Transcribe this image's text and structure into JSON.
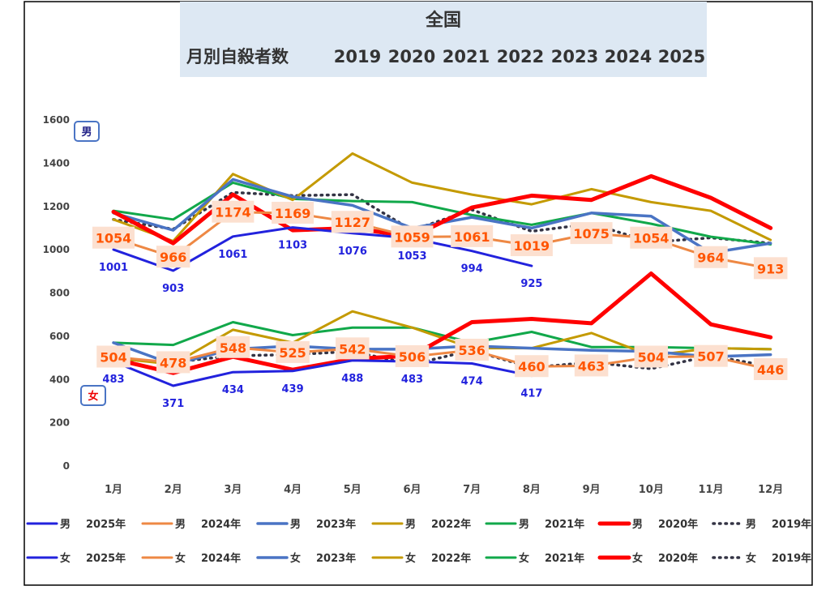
{
  "chart_data": {
    "type": "line",
    "title": "全国",
    "subtitle": "月別自殺者数",
    "years_header": [
      "2019",
      "2020",
      "2021",
      "2022",
      "2023",
      "2024",
      "2025"
    ],
    "categories": [
      "1月",
      "2月",
      "3月",
      "4月",
      "5月",
      "6月",
      "7月",
      "8月",
      "9月",
      "10月",
      "11月",
      "12月"
    ],
    "ylim": [
      0,
      1600
    ],
    "yticks": [
      "0",
      "200",
      "400",
      "600",
      "800",
      "1000",
      "1200",
      "1400",
      "1600"
    ],
    "grid": false,
    "box_labels": {
      "male": "男",
      "female": "女"
    },
    "series": [
      {
        "name": "男",
        "year_label": "2025年",
        "color": "#2222dd",
        "dashed": false,
        "width": 3,
        "group": "male",
        "values": [
          1001,
          903,
          1061,
          1103,
          1076,
          1053,
          994,
          925,
          null,
          null,
          null,
          null
        ]
      },
      {
        "name": "男",
        "year_label": "2024年",
        "color": "#ee8844",
        "dashed": false,
        "width": 3,
        "group": "male",
        "values": [
          1054,
          966,
          1174,
          1169,
          1127,
          1059,
          1061,
          1019,
          1075,
          1054,
          964,
          913
        ]
      },
      {
        "name": "男",
        "year_label": "2023年",
        "color": "#4a74c4",
        "dashed": false,
        "width": 3.5,
        "group": "male",
        "values": [
          1170,
          1090,
          1325,
          1245,
          1205,
          1100,
          1150,
          1100,
          1170,
          1155,
          985,
          1030
        ]
      },
      {
        "name": "男",
        "year_label": "2022年",
        "color": "#c49a00",
        "dashed": false,
        "width": 3,
        "group": "male",
        "values": [
          1140,
          1040,
          1350,
          1230,
          1445,
          1310,
          1255,
          1210,
          1280,
          1220,
          1180,
          1045
        ]
      },
      {
        "name": "男",
        "year_label": "2021年",
        "color": "#11a84a",
        "dashed": false,
        "width": 3,
        "group": "male",
        "values": [
          1180,
          1140,
          1310,
          1235,
          1225,
          1220,
          1160,
          1115,
          1170,
          1120,
          1060,
          1025
        ]
      },
      {
        "name": "男",
        "year_label": "2020年",
        "color": "#ff0000",
        "dashed": false,
        "width": 5,
        "group": "male",
        "values": [
          1175,
          1030,
          1255,
          1090,
          1100,
          1060,
          1195,
          1250,
          1230,
          1340,
          1240,
          1100
        ]
      },
      {
        "name": "男",
        "year_label": "2019年",
        "color": "#333344",
        "dashed": true,
        "width": 3.5,
        "group": "male",
        "values": [
          1140,
          1095,
          1265,
          1250,
          1255,
          1090,
          1185,
          1085,
          1120,
          1035,
          1055,
          1030
        ]
      },
      {
        "name": "女",
        "year_label": "2025年",
        "color": "#2222dd",
        "dashed": false,
        "width": 3,
        "group": "female",
        "values": [
          483,
          371,
          434,
          439,
          488,
          483,
          474,
          417,
          null,
          null,
          null,
          null
        ]
      },
      {
        "name": "女",
        "year_label": "2024年",
        "color": "#ee8844",
        "dashed": false,
        "width": 3,
        "group": "female",
        "values": [
          504,
          478,
          548,
          525,
          542,
          506,
          536,
          460,
          463,
          504,
          507,
          446
        ]
      },
      {
        "name": "女",
        "year_label": "2023年",
        "color": "#4a74c4",
        "dashed": false,
        "width": 3.5,
        "group": "female",
        "values": [
          570,
          470,
          540,
          555,
          540,
          540,
          555,
          545,
          535,
          530,
          505,
          515
        ]
      },
      {
        "name": "女",
        "year_label": "2022年",
        "color": "#c49a00",
        "dashed": false,
        "width": 3,
        "group": "female",
        "values": [
          500,
          470,
          630,
          570,
          715,
          640,
          545,
          545,
          615,
          510,
          545,
          540
        ]
      },
      {
        "name": "女",
        "year_label": "2021年",
        "color": "#11a84a",
        "dashed": false,
        "width": 3,
        "group": "female",
        "values": [
          570,
          560,
          665,
          605,
          640,
          640,
          570,
          620,
          550,
          550,
          545,
          540
        ]
      },
      {
        "name": "女",
        "year_label": "2020年",
        "color": "#ff0000",
        "dashed": false,
        "width": 5,
        "group": "female",
        "values": [
          495,
          430,
          505,
          445,
          495,
          510,
          665,
          680,
          660,
          890,
          655,
          595
        ]
      },
      {
        "name": "女",
        "year_label": "2019年",
        "color": "#333344",
        "dashed": true,
        "width": 3.5,
        "group": "female",
        "values": [
          495,
          480,
          510,
          515,
          530,
          470,
          535,
          455,
          480,
          450,
          510,
          460
        ]
      }
    ],
    "data_labels": [
      {
        "series": 0,
        "color": "#2222dd",
        "boxed": false,
        "values": [
          "1001",
          "903",
          "1061",
          "1103",
          "1076",
          "1053",
          "994",
          "925"
        ]
      },
      {
        "series": 1,
        "color": "#ff5500",
        "boxed": true,
        "values": [
          "1054",
          "966",
          "1174",
          "1169",
          "1127",
          "1059",
          "1061",
          "1019",
          "1075",
          "1054",
          "964",
          "913"
        ]
      },
      {
        "series": 7,
        "color": "#2222dd",
        "boxed": false,
        "values": [
          "483",
          "371",
          "434",
          "439",
          "488",
          "483",
          "474",
          "417"
        ]
      },
      {
        "series": 8,
        "color": "#ff5500",
        "boxed": true,
        "values": [
          "504",
          "478",
          "548",
          "525",
          "542",
          "506",
          "536",
          "460",
          "463",
          "504",
          "507",
          "446"
        ]
      }
    ]
  }
}
